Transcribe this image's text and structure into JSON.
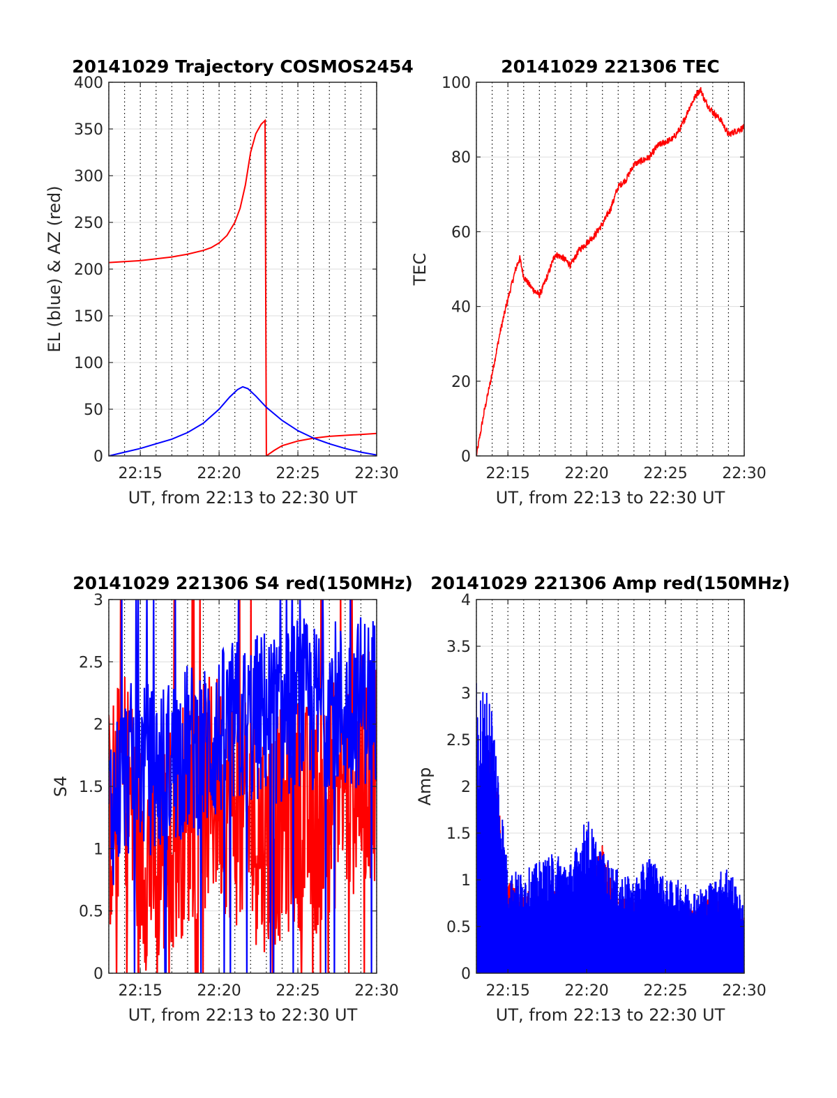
{
  "chart_data": [
    {
      "type": "line",
      "title": "20141029 Trajectory COSMOS2454",
      "xlabel": "UT, from 22:13 to 22:30 UT",
      "ylabel": "EL (blue) & AZ (red)",
      "xlim": [
        "22:13",
        "22:30"
      ],
      "ylim": [
        0,
        400
      ],
      "xticks": [
        "22:15",
        "22:20",
        "22:25",
        "22:30"
      ],
      "yticks": [
        "0",
        "50",
        "100",
        "150",
        "200",
        "250",
        "300",
        "350",
        "400"
      ],
      "grid": true,
      "series": [
        {
          "color": "#ff0000",
          "x": [
            "22:13:00",
            "22:14:00",
            "22:15:00",
            "22:16:00",
            "22:17:00",
            "22:18:00",
            "22:19:00",
            "22:19:30",
            "22:20:00",
            "22:20:30",
            "22:21:00",
            "22:21:20",
            "22:21:40",
            "22:22:00",
            "22:22:20",
            "22:22:40",
            "22:22:55",
            "22:23:00",
            "22:23:10",
            "22:23:30",
            "22:24:00",
            "22:25:00",
            "22:26:00",
            "22:27:00",
            "22:28:00",
            "22:29:00",
            "22:30:00"
          ],
          "values": [
            207,
            208,
            209,
            211,
            213,
            216,
            220,
            223,
            228,
            236,
            250,
            265,
            290,
            325,
            345,
            355,
            359,
            0,
            2,
            6,
            11,
            16,
            19,
            21,
            22,
            23,
            24
          ]
        },
        {
          "color": "#0000ff",
          "x": [
            "22:13:00",
            "22:14:00",
            "22:15:00",
            "22:16:00",
            "22:17:00",
            "22:18:00",
            "22:19:00",
            "22:20:00",
            "22:20:40",
            "22:21:10",
            "22:21:30",
            "22:21:50",
            "22:22:20",
            "22:23:00",
            "22:24:00",
            "22:25:00",
            "22:26:00",
            "22:27:00",
            "22:28:00",
            "22:29:00",
            "22:30:00"
          ],
          "values": [
            0,
            4,
            8,
            13,
            18,
            25,
            35,
            50,
            63,
            71,
            74,
            72,
            64,
            52,
            38,
            27,
            19,
            13,
            8,
            4,
            1
          ]
        }
      ]
    },
    {
      "type": "line",
      "title": "20141029 221306 TEC",
      "xlabel": "UT, from 22:13 to 22:30 UT",
      "ylabel": "TEC",
      "xlim": [
        "22:13",
        "22:30"
      ],
      "ylim": [
        0,
        100
      ],
      "xticks": [
        "22:15",
        "22:20",
        "22:25",
        "22:30"
      ],
      "yticks": [
        "0",
        "20",
        "40",
        "60",
        "80",
        "100"
      ],
      "grid": true,
      "series": [
        {
          "color": "#ff0000",
          "x": [
            "22:13:00",
            "22:13:30",
            "22:14:00",
            "22:14:30",
            "22:15:00",
            "22:15:30",
            "22:15:45",
            "22:16:00",
            "22:16:30",
            "22:17:00",
            "22:17:30",
            "22:18:00",
            "22:18:30",
            "22:19:00",
            "22:19:30",
            "22:20:00",
            "22:20:30",
            "22:21:00",
            "22:21:30",
            "22:22:00",
            "22:22:30",
            "22:23:00",
            "22:23:30",
            "22:24:00",
            "22:24:30",
            "22:25:00",
            "22:25:30",
            "22:26:00",
            "22:26:30",
            "22:27:00",
            "22:27:15",
            "22:27:30",
            "22:28:00",
            "22:28:30",
            "22:29:00",
            "22:29:30",
            "22:30:00"
          ],
          "values": [
            0,
            12,
            22,
            33,
            42,
            50,
            53,
            48,
            45,
            43,
            48,
            54,
            53,
            51,
            55,
            57,
            59,
            62,
            66,
            72,
            74,
            78,
            79,
            80,
            83,
            84,
            85,
            88,
            93,
            97,
            98,
            95,
            92,
            90,
            86,
            87,
            88
          ]
        }
      ]
    },
    {
      "type": "line",
      "title": "20141029 221306 S4 red(150MHz)",
      "xlabel": "UT, from 22:13 to 22:30 UT",
      "ylabel": "S4",
      "xlim": [
        "22:13",
        "22:30"
      ],
      "ylim": [
        0,
        3
      ],
      "xticks": [
        "22:15",
        "22:20",
        "22:25",
        "22:30"
      ],
      "yticks": [
        "0",
        "0.5",
        "1",
        "1.5",
        "2",
        "2.5",
        "3"
      ],
      "grid": true,
      "series": [
        {
          "color": "#ff0000",
          "x": [
            "22:13",
            "22:14",
            "22:15",
            "22:16",
            "22:17",
            "22:18",
            "22:19",
            "22:20",
            "22:21",
            "22:22",
            "22:23",
            "22:24",
            "22:25",
            "22:26",
            "22:27",
            "22:28",
            "22:29",
            "22:30"
          ],
          "values": [
            1.2,
            1.6,
            1.0,
            0.9,
            1.1,
            1.3,
            1.4,
            1.5,
            1.3,
            1.2,
            1.1,
            1.2,
            1.3,
            1.2,
            1.4,
            1.5,
            1.6,
            1.7
          ]
        },
        {
          "color": "#0000ff",
          "x": [
            "22:13",
            "22:14",
            "22:15",
            "22:16",
            "22:17",
            "22:18",
            "22:19",
            "22:20",
            "22:21",
            "22:22",
            "22:23",
            "22:24",
            "22:25",
            "22:26",
            "22:27",
            "22:28",
            "22:29",
            "22:30"
          ],
          "values": [
            1.3,
            1.6,
            1.7,
            1.6,
            1.7,
            1.8,
            1.8,
            1.9,
            2.0,
            2.0,
            2.1,
            2.0,
            2.2,
            2.1,
            2.2,
            2.1,
            2.2,
            2.2
          ]
        }
      ]
    },
    {
      "type": "bar",
      "title": "20141029 221306 Amp red(150MHz)",
      "xlabel": "UT, from 22:13 to 22:30 UT",
      "ylabel": "Amp",
      "xlim": [
        "22:13",
        "22:30"
      ],
      "ylim": [
        0,
        4
      ],
      "xticks": [
        "22:15",
        "22:20",
        "22:25",
        "22:30"
      ],
      "yticks": [
        "0",
        "0.5",
        "1",
        "1.5",
        "2",
        "2.5",
        "3",
        "3.5",
        "4"
      ],
      "grid": true,
      "series": [
        {
          "color": "#ff0000",
          "x": [
            "22:13",
            "22:14",
            "22:15",
            "22:16",
            "22:17",
            "22:18",
            "22:19",
            "22:20",
            "22:21",
            "22:22",
            "22:23",
            "22:24",
            "22:25",
            "22:26",
            "22:27",
            "22:28",
            "22:29",
            "22:30"
          ],
          "values": [
            2.2,
            2.4,
            1.0,
            0.9,
            0.9,
            0.9,
            0.85,
            0.9,
            1.4,
            0.8,
            0.8,
            0.75,
            0.7,
            0.7,
            0.7,
            0.9,
            0.7,
            0.6
          ]
        },
        {
          "color": "#0000ff",
          "x": [
            "22:13",
            "22:14",
            "22:15",
            "22:16",
            "22:17",
            "22:18",
            "22:19",
            "22:20",
            "22:21",
            "22:22",
            "22:23",
            "22:24",
            "22:25",
            "22:26",
            "22:27",
            "22:28",
            "22:29",
            "22:30"
          ],
          "values": [
            3.2,
            3.0,
            1.1,
            1.1,
            1.2,
            1.3,
            1.2,
            1.7,
            1.3,
            1.1,
            1.0,
            1.3,
            1.0,
            1.0,
            0.9,
            1.0,
            1.2,
            0.7
          ]
        }
      ]
    }
  ]
}
